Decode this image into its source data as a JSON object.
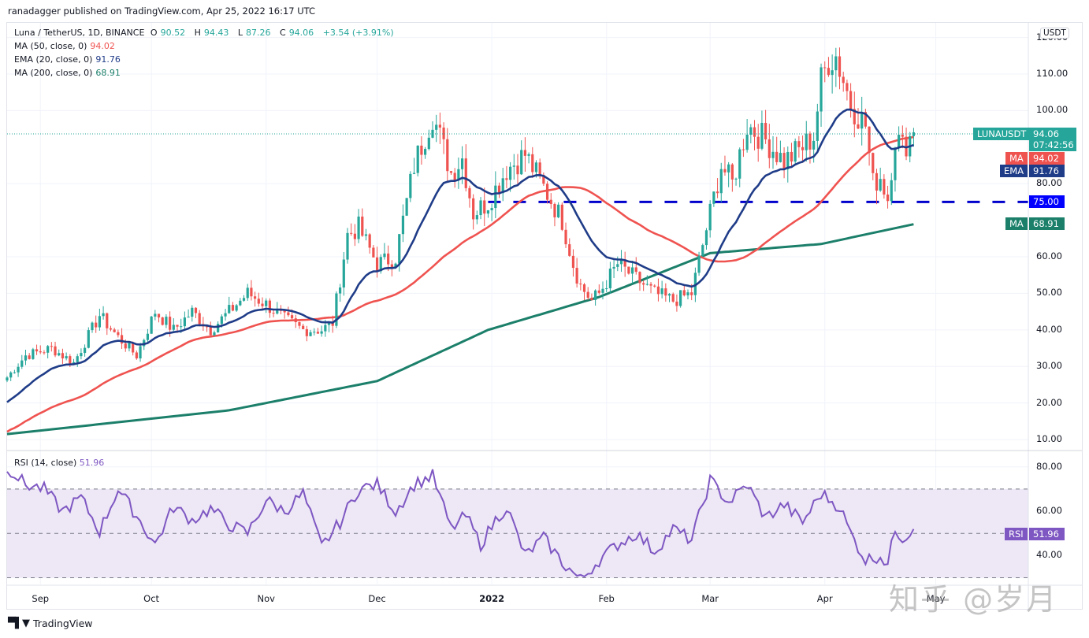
{
  "header": {
    "publisher": "ranadagger published on TradingView.com, Apr 25, 2022 16:17 UTC"
  },
  "legend": {
    "symbol": "Luna / TetherUS, 1D, BINANCE",
    "open_label": "O",
    "open": "90.52",
    "high_label": "H",
    "high": "94.43",
    "low_label": "L",
    "low": "87.26",
    "close_label": "C",
    "close": "94.06",
    "change": "+3.54 (+3.91%)",
    "ma50_label": "MA (50, close, 0)",
    "ma50_value": "94.02",
    "ema20_label": "EMA (20, close, 0)",
    "ema20_value": "91.76",
    "ma200_label": "MA (200, close, 0)",
    "ma200_value": "68.91",
    "rsi_label": "RSI (14, close)",
    "rsi_value": "51.96"
  },
  "badges": {
    "currency": "USDT",
    "symbol": "LUNAUSDT",
    "last_price": "94.06",
    "countdown": "07:42:56",
    "ma_label": "MA",
    "ma50": "94.02",
    "ema_label": "EMA",
    "ema20": "91.76",
    "level": "75.00",
    "ma200_label": "MA",
    "ma200": "68.91",
    "rsi_label": "RSI",
    "rsi": "51.96"
  },
  "colors": {
    "up": "#26a69a",
    "down": "#ef5350",
    "ma50": "#ef5350",
    "ema20": "#1f3c88",
    "ma200": "#1b7f6a",
    "level": "#0000cc",
    "rsi": "#7e57c2",
    "rsi_band": "#ede7f6"
  },
  "footer": {
    "brand": "TradingView",
    "watermark": "知乎 @岁月"
  },
  "chart_data": {
    "type": "candlestick",
    "title": "Luna / TetherUS, 1D, BINANCE",
    "price_axis": {
      "ticks": [
        "120.00",
        "110.00",
        "100.00",
        "80.00",
        "60.00",
        "50.00",
        "40.00",
        "30.00",
        "20.00",
        "10.00"
      ],
      "tick_values": [
        120,
        110,
        100,
        80,
        60,
        50,
        40,
        30,
        20,
        10
      ],
      "ylim": [
        7,
        124
      ]
    },
    "time_axis": {
      "ticks": [
        "Sep",
        "Oct",
        "Nov",
        "Dec",
        "2022",
        "Feb",
        "Mar",
        "Apr",
        "May"
      ],
      "tick_days": [
        9,
        39,
        70,
        100,
        131,
        162,
        190,
        221,
        251
      ],
      "xlim_days": [
        0,
        276
      ]
    },
    "horizontal_level": 75,
    "close_waypoints": {
      "days": [
        0,
        5,
        12,
        18,
        25,
        30,
        35,
        40,
        45,
        50,
        55,
        60,
        65,
        70,
        75,
        80,
        85,
        88,
        92,
        95,
        100,
        105,
        110,
        115,
        120,
        123,
        126,
        130,
        135,
        140,
        145,
        150,
        153,
        155,
        158,
        160,
        165,
        170,
        175,
        180,
        185,
        190,
        193,
        196,
        198,
        200,
        205,
        210,
        215,
        218,
        220,
        222,
        224,
        228,
        232,
        234,
        236,
        238,
        240,
        242,
        245
      ],
      "values": [
        27,
        33,
        35,
        31,
        44,
        38,
        33,
        45,
        40,
        45,
        40,
        45,
        50,
        47,
        43,
        40,
        40,
        42,
        66,
        68,
        58,
        60,
        85,
        99,
        83,
        87,
        72,
        75,
        84,
        88,
        79,
        70,
        58,
        52,
        48,
        50,
        58,
        54,
        50,
        48,
        50,
        72,
        85,
        80,
        88,
        96,
        92,
        86,
        90,
        93,
        108,
        114,
        115,
        102,
        96,
        80,
        82,
        76,
        93,
        90,
        94.06
      ]
    },
    "series": [
      {
        "name": "MA (50, close, 0)",
        "last": 94.02
      },
      {
        "name": "EMA (20, close, 0)",
        "last": 91.76
      },
      {
        "name": "MA (200, close, 0)",
        "last": 68.91
      }
    ],
    "ma200_waypoints": {
      "days": [
        0,
        60,
        100,
        130,
        160,
        190,
        220,
        245
      ],
      "values": [
        11.5,
        18,
        26,
        40,
        49,
        61,
        63.5,
        68.91
      ]
    },
    "rsi": {
      "name": "RSI (14, close)",
      "ticks": [
        "80.00",
        "60.00",
        "40.00"
      ],
      "tick_values": [
        80,
        60,
        40
      ],
      "ylim": [
        27,
        87
      ],
      "bands": [
        30,
        50,
        70
      ],
      "last": 51.96,
      "waypoints": {
        "days": [
          0,
          5,
          10,
          15,
          20,
          25,
          30,
          35,
          40,
          45,
          50,
          55,
          60,
          65,
          70,
          75,
          80,
          85,
          90,
          95,
          100,
          105,
          110,
          115,
          120,
          124,
          128,
          132,
          135,
          140,
          145,
          150,
          155,
          160,
          165,
          170,
          175,
          180,
          185,
          190,
          195,
          200,
          205,
          210,
          215,
          220,
          225,
          228,
          232,
          236,
          238,
          240,
          242,
          245
        ],
        "values": [
          80,
          72,
          70,
          60,
          66,
          51,
          70,
          58,
          45,
          62,
          56,
          61,
          54,
          50,
          65,
          60,
          68,
          44,
          55,
          70,
          72,
          60,
          72,
          76,
          52,
          58,
          45,
          56,
          62,
          40,
          48,
          37,
          29,
          38,
          45,
          50,
          42,
          52,
          47,
          74,
          64,
          72,
          57,
          63,
          55,
          68,
          62,
          50,
          38,
          40,
          36,
          52,
          48,
          51.96
        ]
      }
    }
  }
}
